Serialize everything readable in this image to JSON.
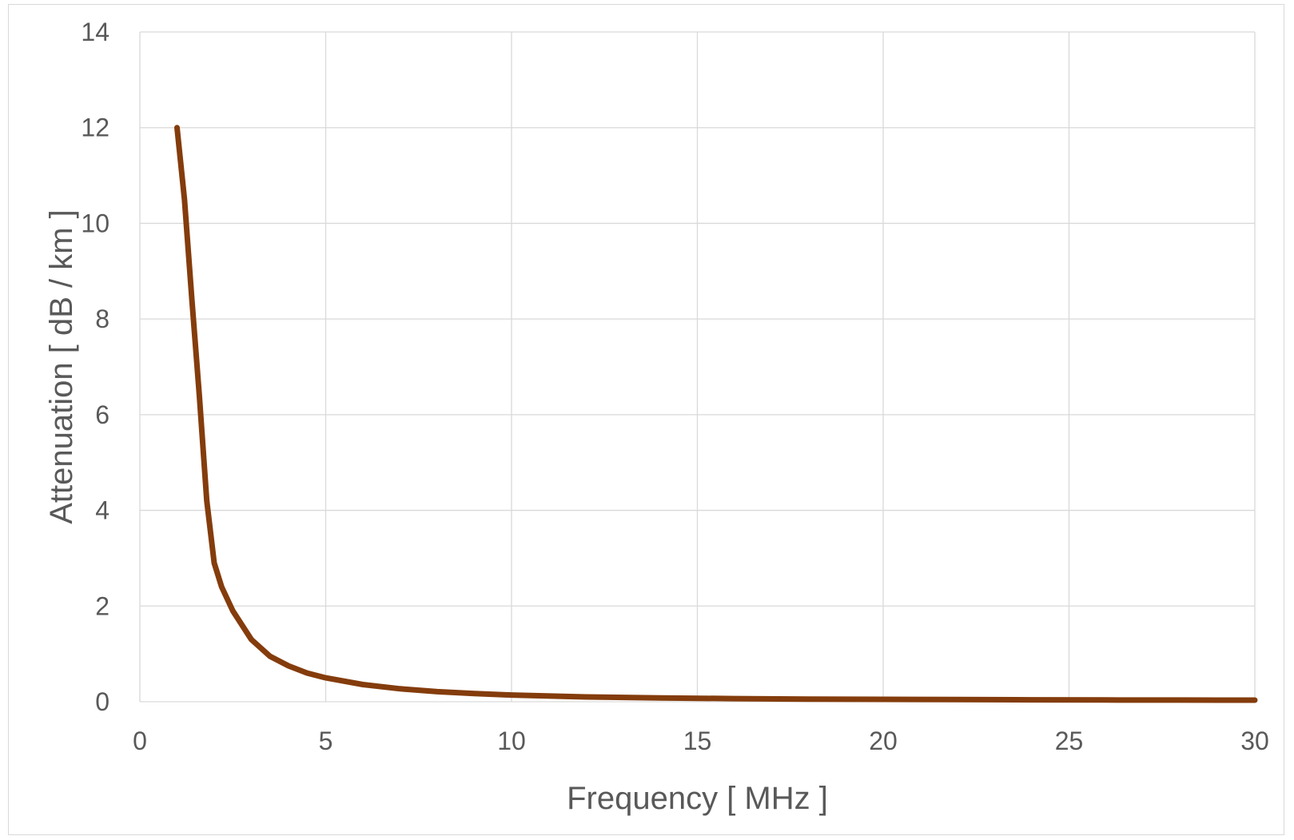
{
  "chart_data": {
    "type": "line",
    "title": "",
    "xlabel": "Frequency  [ MHz ]",
    "ylabel": "Attenuation  [ dB / km ]",
    "xlim": [
      0,
      30
    ],
    "ylim": [
      0,
      14
    ],
    "xticks": [
      0,
      5,
      10,
      15,
      20,
      25,
      30
    ],
    "yticks": [
      0,
      2,
      4,
      6,
      8,
      10,
      12,
      14
    ],
    "grid": true,
    "legend": "none",
    "series": [
      {
        "color": "#843C0C",
        "x": [
          1.0,
          1.2,
          1.4,
          1.6,
          1.8,
          2.0,
          2.2,
          2.5,
          3.0,
          3.5,
          4.0,
          4.5,
          5.0,
          6.0,
          7.0,
          8.0,
          9.0,
          10.0,
          12.0,
          14.0,
          16.0,
          18.0,
          20.0,
          22.0,
          24.0,
          26.0,
          28.0,
          30.0
        ],
        "y": [
          12.0,
          10.5,
          8.4,
          6.4,
          4.2,
          2.9,
          2.4,
          1.9,
          1.3,
          0.95,
          0.75,
          0.6,
          0.5,
          0.36,
          0.27,
          0.21,
          0.17,
          0.14,
          0.1,
          0.08,
          0.065,
          0.055,
          0.05,
          0.045,
          0.04,
          0.037,
          0.035,
          0.033
        ]
      }
    ]
  }
}
